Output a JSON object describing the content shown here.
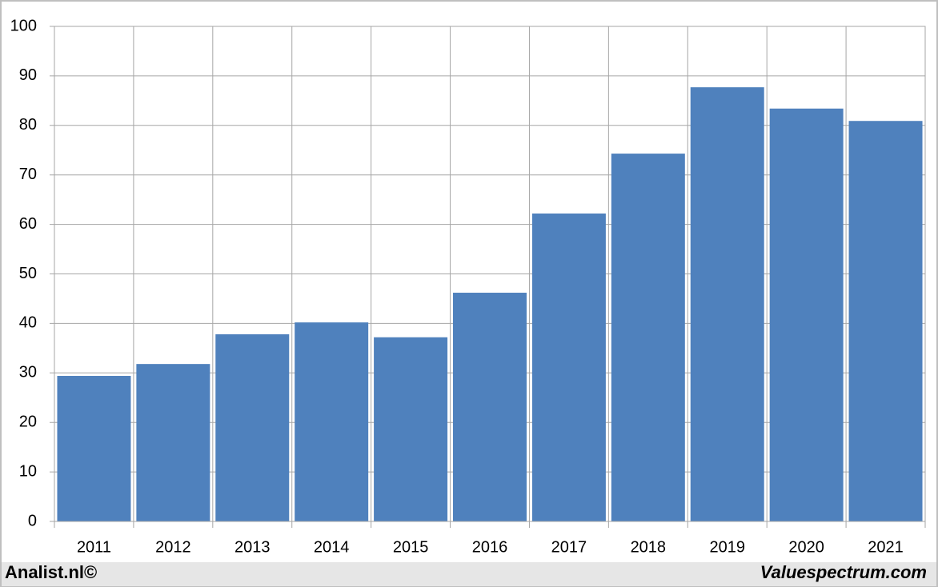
{
  "chart_data": {
    "type": "bar",
    "categories": [
      "2011",
      "2012",
      "2013",
      "2014",
      "2015",
      "2016",
      "2017",
      "2018",
      "2019",
      "2020",
      "2021"
    ],
    "values": [
      29.4,
      31.8,
      37.8,
      40.2,
      37.2,
      46.2,
      62.2,
      74.3,
      87.7,
      83.4,
      80.9
    ],
    "color": "#4f81bd",
    "ylim": [
      0,
      100
    ],
    "yticks": [
      0,
      10,
      20,
      30,
      40,
      50,
      60,
      70,
      80,
      90,
      100
    ],
    "grid": true
  },
  "footer": {
    "left": "Analist.nl©",
    "right": "Valuespectrum.com"
  }
}
